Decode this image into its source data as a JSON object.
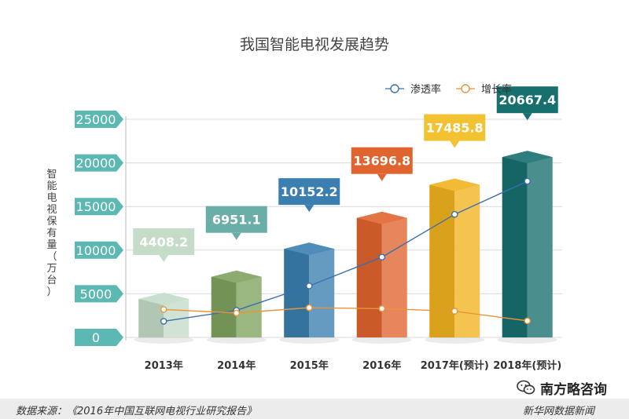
{
  "chart_data": {
    "type": "bar",
    "title": "我国智能电视发展趋势",
    "ylabel": "智能电视保有量（万台）",
    "ylim": [
      0,
      25000
    ],
    "yticks": [
      "0",
      "5000",
      "10000",
      "15000",
      "20000",
      "25000"
    ],
    "categories": [
      "2013年",
      "2014年",
      "2015年",
      "2016年",
      "2017年(预计)",
      "2018年(预计)"
    ],
    "values": [
      4408.2,
      6951.1,
      10152.2,
      13696.8,
      17485.8,
      20667.4
    ],
    "value_labels": [
      "4408.2",
      "6951.1",
      "10152.2",
      "13696.8",
      "17485.8",
      "20667.4"
    ],
    "bar_colors": [
      "#c4dcc8",
      "#7ea35e",
      "#3b7fb0",
      "#e0642f",
      "#f2b31f",
      "#17706e"
    ],
    "label_colors": [
      "#c4dcc8",
      "#6aaea7",
      "#3b7fb0",
      "#e0642f",
      "#f2c230",
      "#17706e"
    ],
    "legend": [
      {
        "name": "渗透率",
        "color": "#3b6fb0"
      },
      {
        "name": "增长率",
        "color": "#e8943a"
      }
    ],
    "legend_position": "top-right",
    "grid": true,
    "lines": [
      {
        "name": "渗透率",
        "color": "#3b6fb0",
        "values": [
          1850,
          3100,
          5900,
          9200,
          14100,
          17900
        ]
      },
      {
        "name": "增长率",
        "color": "#e8943a",
        "values": [
          3200,
          2800,
          3400,
          3300,
          3000,
          1900
        ]
      }
    ]
  },
  "footer": {
    "source": "数据来源：《2016年中国互联网电视行业研究报告》",
    "publisher": "新华网数据新闻",
    "watermark": "南方略咨询"
  }
}
